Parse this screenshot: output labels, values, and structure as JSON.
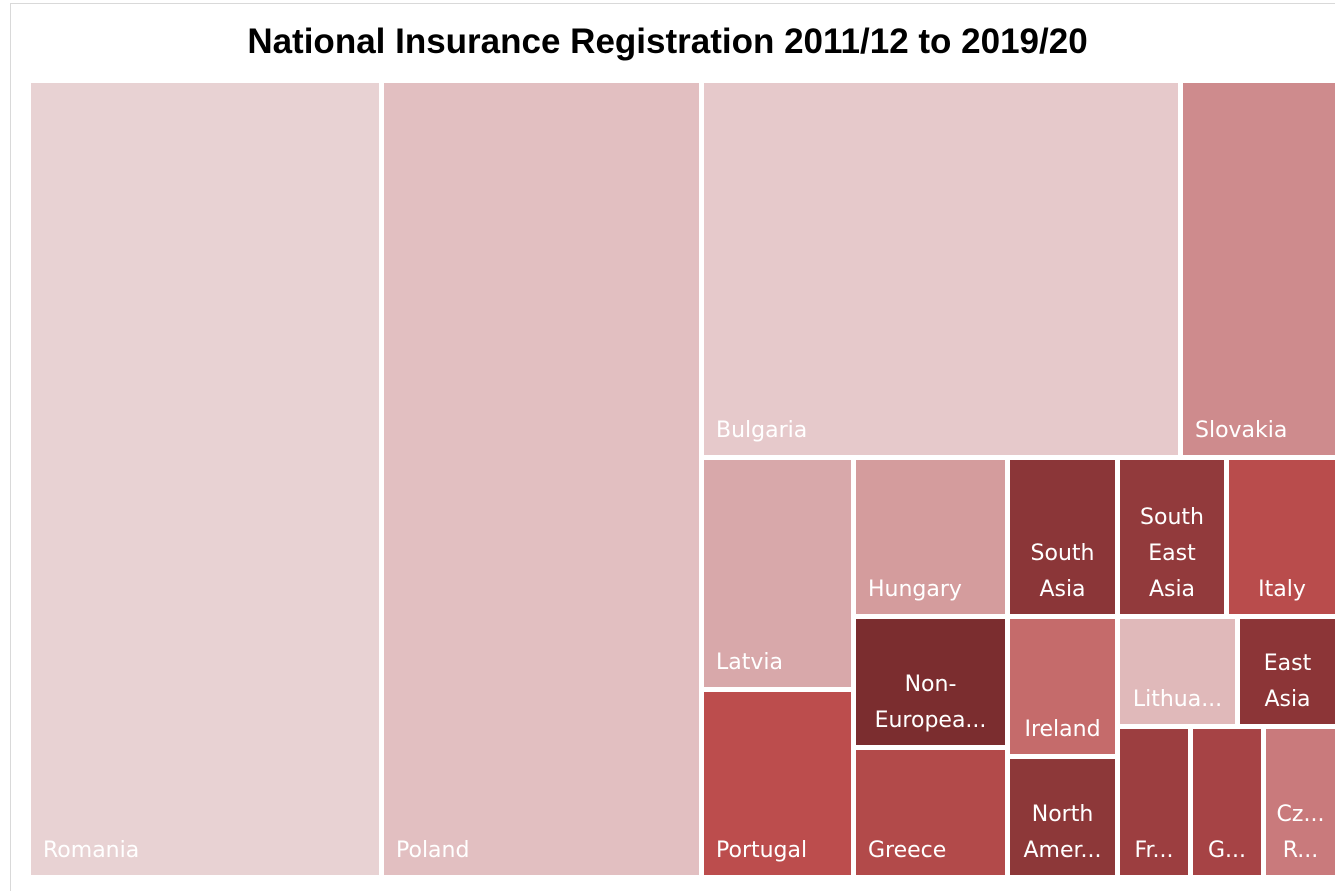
{
  "chart_data": {
    "type": "treemap",
    "title": "National Insurance Registration 2011/12 to 2019/20",
    "items": [
      {
        "name": "Romania",
        "value": 100,
        "color": "#e8d2d3",
        "text_color": "#ffffff"
      },
      {
        "name": "Poland",
        "value": 91,
        "color": "#e2bfc1",
        "text_color": "#ffffff"
      },
      {
        "name": "Bulgaria",
        "value": 52,
        "color": "#e6c9cb",
        "text_color": "#ffffff"
      },
      {
        "name": "Slovakia",
        "value": 18,
        "color": "#ce8b8d",
        "text_color": "#ffffff"
      },
      {
        "name": "Latvia",
        "value": 10,
        "color": "#d8a8aa",
        "text_color": "#ffffff"
      },
      {
        "name": "Portugal",
        "value": 8,
        "color": "#bc4d4d",
        "text_color": "#ffffff"
      },
      {
        "name": "Hungary",
        "value": 6.5,
        "color": "#d49c9d",
        "text_color": "#ffffff"
      },
      {
        "name": "Non-Europea...",
        "value": 4.3,
        "color": "#7b2d2f",
        "text_color": "#ffffff"
      },
      {
        "name": "Greece",
        "value": 4.1,
        "color": "#b24a4a",
        "text_color": "#ffffff"
      },
      {
        "name": "South Asia",
        "value": 4.6,
        "color": "#8b3638",
        "text_color": "#ffffff"
      },
      {
        "name": "Ireland",
        "value": 3.6,
        "color": "#c56b6b",
        "text_color": "#ffffff"
      },
      {
        "name": "North Amer...",
        "value": 3.3,
        "color": "#8d3839",
        "text_color": "#ffffff"
      },
      {
        "name": "South East Asia",
        "value": 4.2,
        "color": "#923a3c",
        "text_color": "#ffffff"
      },
      {
        "name": "Italy",
        "value": 3.8,
        "color": "#b94c4c",
        "text_color": "#ffffff"
      },
      {
        "name": "Lithua...",
        "value": 2.8,
        "color": "#e0b9ba",
        "text_color": "#ffffff"
      },
      {
        "name": "East Asia",
        "value": 2.4,
        "color": "#8c3537",
        "text_color": "#ffffff"
      },
      {
        "name": "Fr...",
        "value": 2.1,
        "color": "#9c3e40",
        "text_color": "#ffffff"
      },
      {
        "name": "G...",
        "value": 2.0,
        "color": "#a64345",
        "text_color": "#ffffff"
      },
      {
        "name": "Cz... R...",
        "value": 2.0,
        "color": "#c97a7c",
        "text_color": "#ffffff"
      }
    ]
  }
}
